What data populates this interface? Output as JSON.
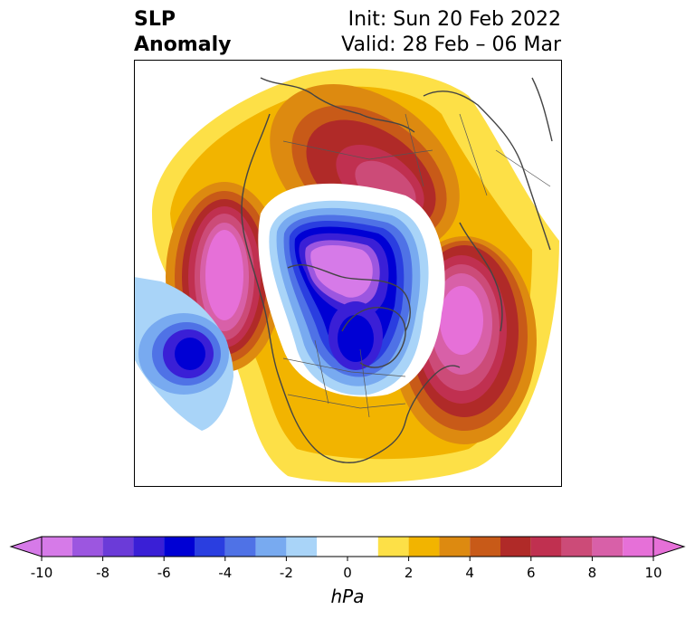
{
  "title": {
    "left_line1": "SLP",
    "left_line2": "Anomaly",
    "right_line1": "Init: Sun 20 Feb 2022",
    "right_line2": "Valid: 28 Feb – 06 Mar"
  },
  "colorbar": {
    "label": "hPa",
    "ticks": [
      "-10",
      "-8",
      "-6",
      "-4",
      "-2",
      "0",
      "2",
      "4",
      "6",
      "8",
      "10"
    ],
    "levels": [
      -10,
      -9,
      -8,
      -7,
      -6,
      -5,
      -4,
      -3,
      -2,
      -1,
      1,
      2,
      3,
      4,
      5,
      6,
      7,
      8,
      9,
      10
    ],
    "colors": [
      "#d67ae8",
      "#9c56e0",
      "#6b3bd8",
      "#3a1fd6",
      "#0000d4",
      "#2a3ee0",
      "#4f72e6",
      "#78aaf0",
      "#a9d4f8",
      "#ffffff",
      "#fde047",
      "#f2b400",
      "#dd8a10",
      "#c85a18",
      "#b02a28",
      "#c03050",
      "#cc4b78",
      "#d860a8",
      "#e670d8"
    ]
  },
  "map": {
    "projection": "north-polar-stereographic",
    "variable": "sea level pressure anomaly",
    "features": [
      {
        "name": "north-pacific-high",
        "sign": "positive",
        "peak_hpa": 10
      },
      {
        "name": "arctic-low",
        "sign": "negative",
        "peak_hpa": -10
      },
      {
        "name": "eastern-pacific-low",
        "sign": "negative",
        "peak_hpa": -6
      },
      {
        "name": "north-atlantic-high",
        "sign": "positive",
        "peak_hpa": 10
      },
      {
        "name": "siberian-high",
        "sign": "positive",
        "peak_hpa": 8
      },
      {
        "name": "hudson-bay-low",
        "sign": "negative",
        "peak_hpa": -6
      }
    ]
  }
}
